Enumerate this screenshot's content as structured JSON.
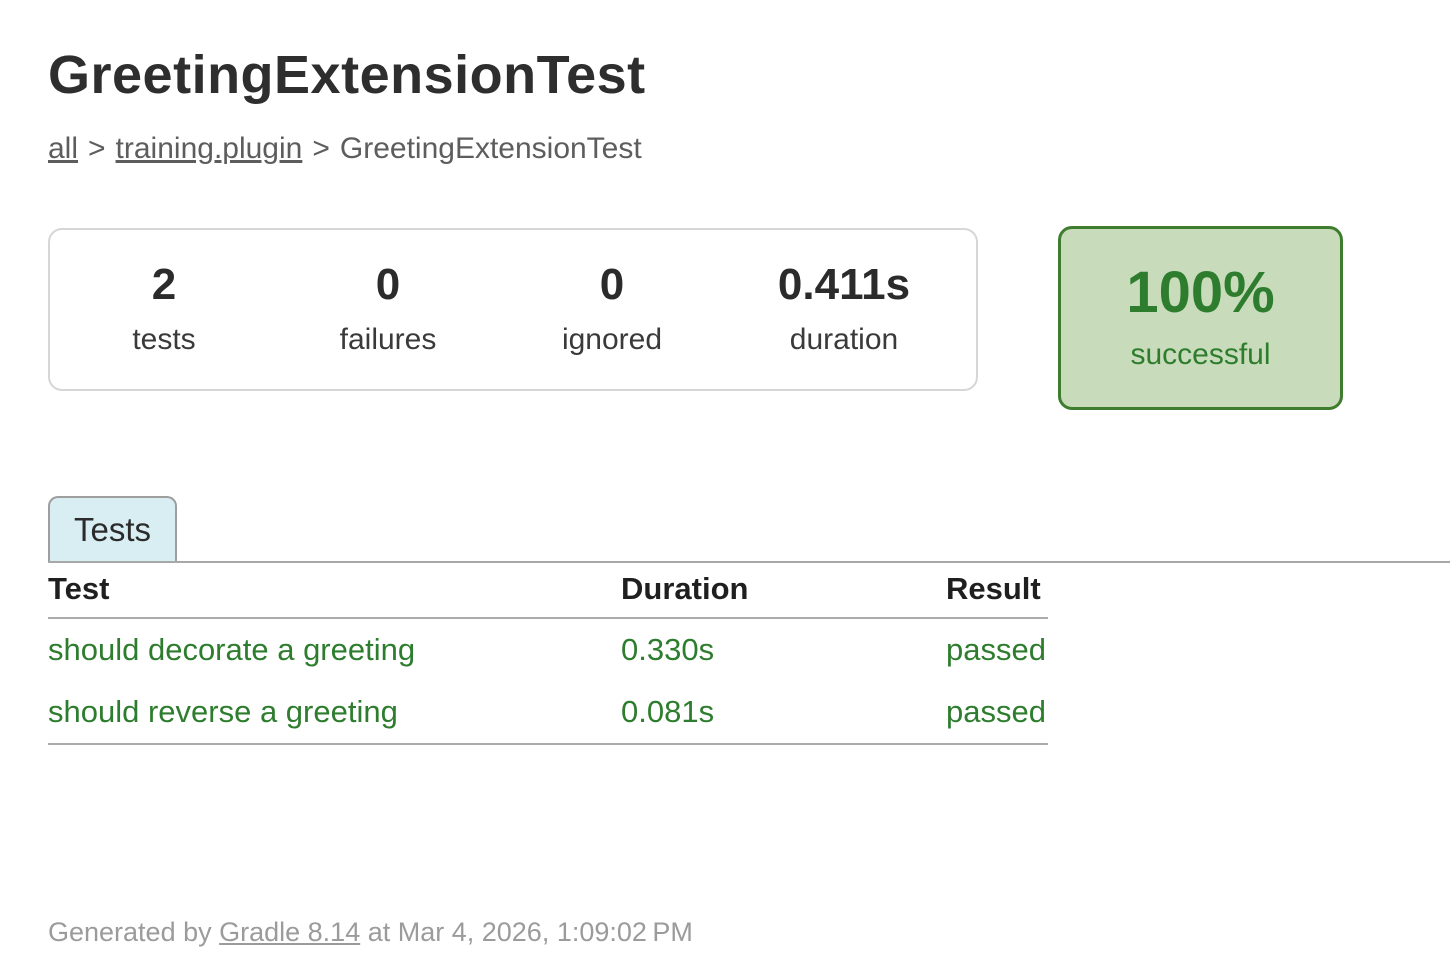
{
  "header": {
    "title": "GreetingExtensionTest"
  },
  "breadcrumb": {
    "separator": ">",
    "items": [
      "all",
      "training.plugin",
      "GreetingExtensionTest"
    ]
  },
  "summary": {
    "stats": [
      {
        "value": "2",
        "label": "tests"
      },
      {
        "value": "0",
        "label": "failures"
      },
      {
        "value": "0",
        "label": "ignored"
      },
      {
        "value": "0.411s",
        "label": "duration"
      }
    ]
  },
  "success": {
    "percent": "100%",
    "label": "successful"
  },
  "tabs": [
    {
      "label": "Tests"
    }
  ],
  "tests_table": {
    "headers": [
      "Test",
      "Duration",
      "Result"
    ],
    "rows": [
      {
        "test": "should decorate a greeting",
        "duration": "0.330s",
        "result": "passed"
      },
      {
        "test": "should reverse a greeting",
        "duration": "0.081s",
        "result": "passed"
      }
    ]
  },
  "footer": {
    "prefix": "Generated by ",
    "link_label": "Gradle 8.14",
    "suffix": " at Mar 4, 2026, 1:09:02 PM"
  },
  "colors": {
    "success_text": "#2e7d2e",
    "success_bg": "#c8dcbb",
    "success_border": "#3f7d2e",
    "tab_selected_bg": "#d8eef3",
    "line_gray": "#a8a8a8"
  }
}
